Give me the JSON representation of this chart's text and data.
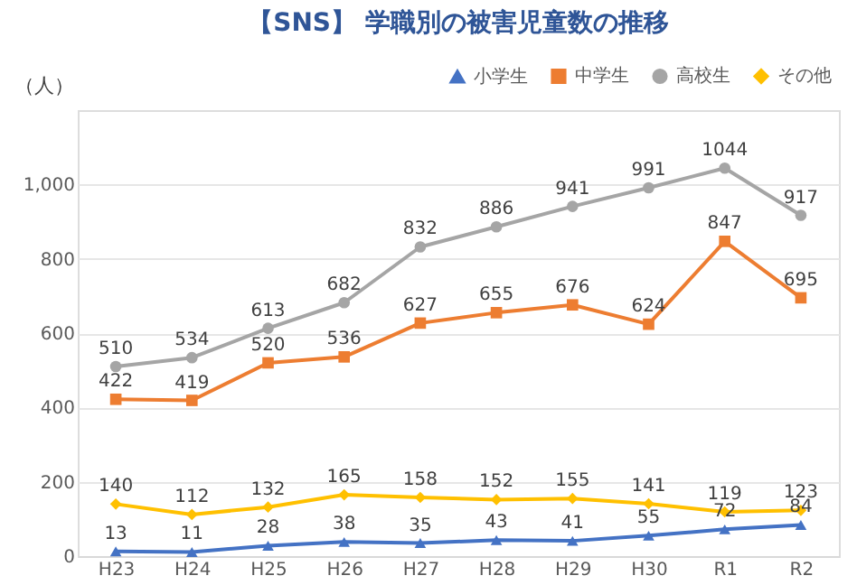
{
  "chart_data": {
    "type": "line",
    "title": "【SNS】 学職別の被害児童数の推移",
    "ylabel": "（人）",
    "categories": [
      "H23",
      "H24",
      "H25",
      "H26",
      "H27",
      "H28",
      "H29",
      "H30",
      "R1",
      "R2"
    ],
    "series": [
      {
        "name": "小学生",
        "color": "#4472c4",
        "marker": "triangle",
        "values": [
          13,
          11,
          28,
          38,
          35,
          43,
          41,
          55,
          72,
          84
        ]
      },
      {
        "name": "中学生",
        "color": "#ed7d31",
        "marker": "square",
        "values": [
          422,
          419,
          520,
          536,
          627,
          655,
          676,
          624,
          847,
          695
        ]
      },
      {
        "name": "高校生",
        "color": "#a5a5a5",
        "marker": "circle",
        "values": [
          510,
          534,
          613,
          682,
          832,
          886,
          941,
          991,
          1044,
          917
        ]
      },
      {
        "name": "その他",
        "color": "#ffc000",
        "marker": "diamond",
        "values": [
          140,
          112,
          132,
          165,
          158,
          152,
          155,
          141,
          119,
          123
        ]
      }
    ],
    "ylim": [
      0,
      1200
    ],
    "yticks": [
      0,
      200,
      400,
      600,
      800,
      {
        "value": 1000,
        "label": "1,000"
      }
    ],
    "grid": "y",
    "legend": "top right",
    "data_labels": true,
    "line_style": "solid"
  }
}
